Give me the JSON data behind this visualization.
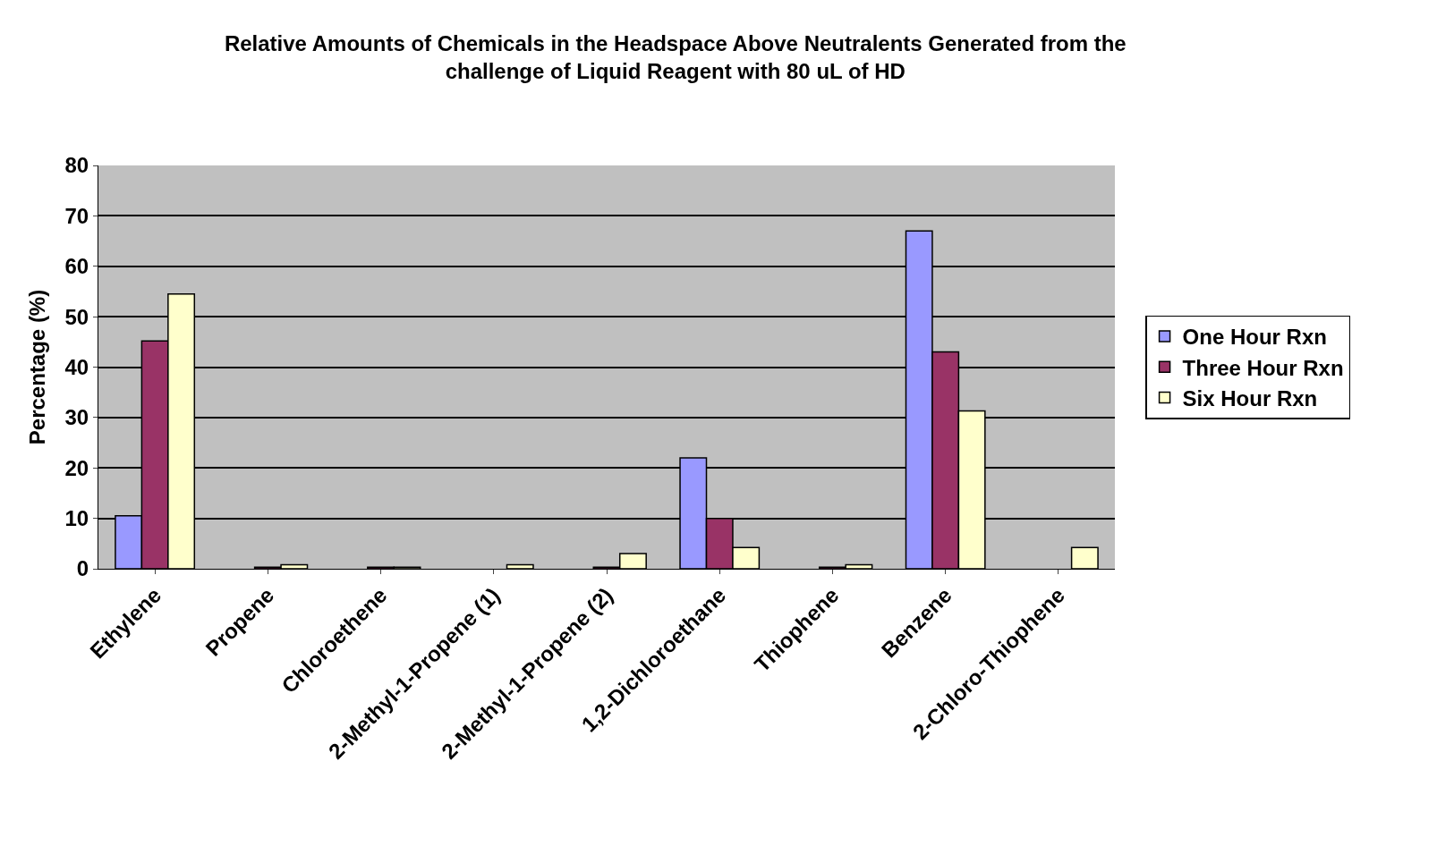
{
  "chart_data": {
    "type": "bar",
    "title": "Relative Amounts of Chemicals in the Headspace Above Neutralents Generated from the\nchallenge of Liquid Reagent with 80 uL of HD",
    "ylabel": "Percentage (%)",
    "categories": [
      "Ethylene",
      "Propene",
      "Chloroethene",
      "2-Methyl-1-Propene (1)",
      "2-Methyl-1-Propene (2)",
      "1,2-Dichloroethane",
      "Thiophene",
      "Benzene",
      "2-Chloro-Thiophene"
    ],
    "series": [
      {
        "name": "One Hour Rxn",
        "color": "#9999ff",
        "values": [
          10.5,
          null,
          null,
          null,
          null,
          22,
          null,
          67,
          null
        ]
      },
      {
        "name": "Three Hour Rxn",
        "color": "#993366",
        "values": [
          45.2,
          0.3,
          0.3,
          null,
          0.3,
          10,
          0.3,
          43,
          null
        ]
      },
      {
        "name": "Six Hour Rxn",
        "color": "#ffffcc",
        "values": [
          54.5,
          0.8,
          0.3,
          0.8,
          3,
          4.2,
          0.8,
          31.3,
          4.2
        ]
      }
    ],
    "ylim": [
      0,
      80
    ],
    "yticks": [
      0,
      10,
      20,
      30,
      40,
      50,
      60,
      70,
      80
    ],
    "grid": "y",
    "legend": "right"
  }
}
